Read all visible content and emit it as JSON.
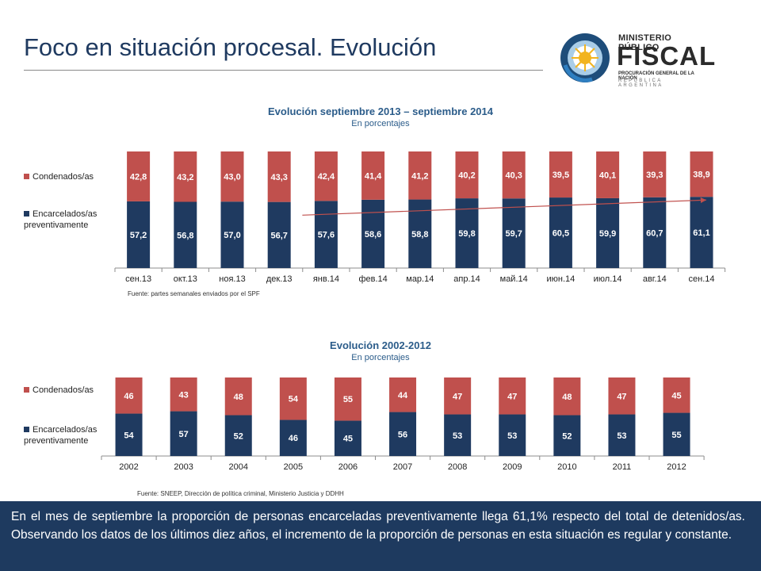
{
  "slide": {
    "title": "Foco en situación procesal. Evolución"
  },
  "logo": {
    "line1": "MINISTERIO PÚBLICO",
    "line2": "FISCAL",
    "line3": "PROCURACIÓN GENERAL DE LA NACIÓN",
    "line4": "REPÚBLICA ARGENTINA"
  },
  "chart1": {
    "title": "Evolución septiembre 2013 – septiembre 2014",
    "subtitle": "En porcentajes",
    "source": "Fuente: partes semanales enviados por el SPF"
  },
  "chart2": {
    "title": "Evolución 2002-2012",
    "subtitle": "En porcentajes",
    "source": "Fuente: SNEEP, Dirección de política criminal, Ministerio Justicia y DDHH"
  },
  "footer": {
    "text": "En el mes de septiembre la proporción de personas encarceladas preventivamente llega 61,1% respecto del total de detenidos/as. Observando los datos de los últimos diez años, el incremento de la proporción de personas en esta situación es regular y constante."
  },
  "colors": {
    "condenados": "#c0504d",
    "encarcelados": "#1f3a60",
    "trend": "#c0504d"
  },
  "chart_data": [
    {
      "type": "bar",
      "stacked": true,
      "title": "Evolución septiembre 2013 – septiembre 2014",
      "subtitle": "En porcentajes",
      "categories": [
        "сен.13",
        "окт.13",
        "ноя.13",
        "дек.13",
        "янв.14",
        "фев.14",
        "мар.14",
        "апр.14",
        "май.14",
        "июн.14",
        "июл.14",
        "авг.14",
        "сен.14"
      ],
      "series": [
        {
          "name": "Encarcelados/as preventivamente",
          "values": [
            57.2,
            56.8,
            57.0,
            56.7,
            57.6,
            58.6,
            58.8,
            59.8,
            59.7,
            60.5,
            59.9,
            60.7,
            61.1
          ],
          "labels": [
            "57,2",
            "56,8",
            "57,0",
            "56,7",
            "57,6",
            "58,6",
            "58,8",
            "59,8",
            "59,7",
            "60,5",
            "59,9",
            "60,7",
            "61,1"
          ]
        },
        {
          "name": "Condenados/as",
          "values": [
            42.8,
            43.2,
            43.0,
            43.3,
            42.4,
            41.4,
            41.2,
            40.2,
            40.3,
            39.5,
            40.1,
            39.3,
            38.9
          ],
          "labels": [
            "42,8",
            "43,2",
            "43,0",
            "43,3",
            "42,4",
            "41,4",
            "41,2",
            "40,2",
            "40,3",
            "39,5",
            "40,1",
            "39,3",
            "38,9"
          ]
        }
      ],
      "trendline": true,
      "legend": "left",
      "ylim": [
        0,
        100
      ]
    },
    {
      "type": "bar",
      "stacked": true,
      "title": "Evolución 2002-2012",
      "subtitle": "En porcentajes",
      "categories": [
        "2002",
        "2003",
        "2004",
        "2005",
        "2006",
        "2007",
        "2008",
        "2009",
        "2010",
        "2011",
        "2012"
      ],
      "series": [
        {
          "name": "Encarcelados/as preventivamente",
          "values": [
            54,
            57,
            52,
            46,
            45,
            56,
            53,
            53,
            52,
            53,
            55
          ],
          "labels": [
            "54",
            "57",
            "52",
            "46",
            "45",
            "56",
            "53",
            "53",
            "52",
            "53",
            "55"
          ]
        },
        {
          "name": "Condenados/as",
          "values": [
            46,
            43,
            48,
            54,
            55,
            44,
            47,
            47,
            48,
            47,
            45
          ],
          "labels": [
            "46",
            "43",
            "48",
            "54",
            "55",
            "44",
            "47",
            "47",
            "48",
            "47",
            "45"
          ]
        }
      ],
      "legend": "left",
      "ylim": [
        0,
        100
      ]
    }
  ]
}
